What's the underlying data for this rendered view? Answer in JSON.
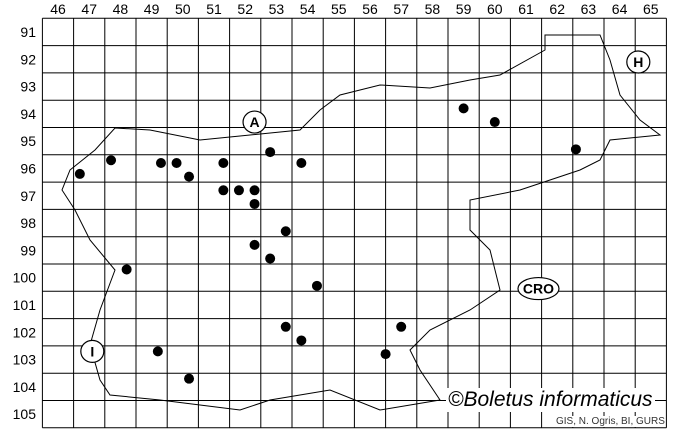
{
  "map": {
    "columns": [
      "46",
      "47",
      "48",
      "49",
      "50",
      "51",
      "52",
      "53",
      "54",
      "55",
      "56",
      "57",
      "58",
      "59",
      "60",
      "61",
      "62",
      "63",
      "64",
      "65"
    ],
    "rows": [
      "91",
      "92",
      "93",
      "94",
      "95",
      "96",
      "97",
      "98",
      "99",
      "100",
      "101",
      "102",
      "103",
      "104",
      "105"
    ],
    "country_labels": [
      {
        "text": "A",
        "col": 52.3,
        "row": 94.3
      },
      {
        "text": "H",
        "col": 64.6,
        "row": 92.1
      },
      {
        "text": "CRO",
        "col": 61.4,
        "row": 100.4
      },
      {
        "text": "I",
        "col": 47.1,
        "row": 102.7
      }
    ],
    "records": [
      [
        46.7,
        96.2
      ],
      [
        47.7,
        95.7
      ],
      [
        49.3,
        95.8
      ],
      [
        49.8,
        95.8
      ],
      [
        50.2,
        96.3
      ],
      [
        51.3,
        95.8
      ],
      [
        51.3,
        96.8
      ],
      [
        51.8,
        96.8
      ],
      [
        52.3,
        96.8
      ],
      [
        52.3,
        97.3
      ],
      [
        52.8,
        95.4
      ],
      [
        53.8,
        95.8
      ],
      [
        53.3,
        98.3
      ],
      [
        52.3,
        98.8
      ],
      [
        52.8,
        99.3
      ],
      [
        48.2,
        99.7
      ],
      [
        54.3,
        100.3
      ],
      [
        53.3,
        101.8
      ],
      [
        53.8,
        102.3
      ],
      [
        49.2,
        102.7
      ],
      [
        50.2,
        103.7
      ],
      [
        56.5,
        102.8
      ],
      [
        57.0,
        101.8
      ],
      [
        59.0,
        93.8
      ],
      [
        60.0,
        94.3
      ],
      [
        62.6,
        95.3
      ]
    ],
    "marker_color": "#000000"
  },
  "credit": "©Boletus informaticus",
  "source": "GIS, N. Ogris, BI, GURS"
}
